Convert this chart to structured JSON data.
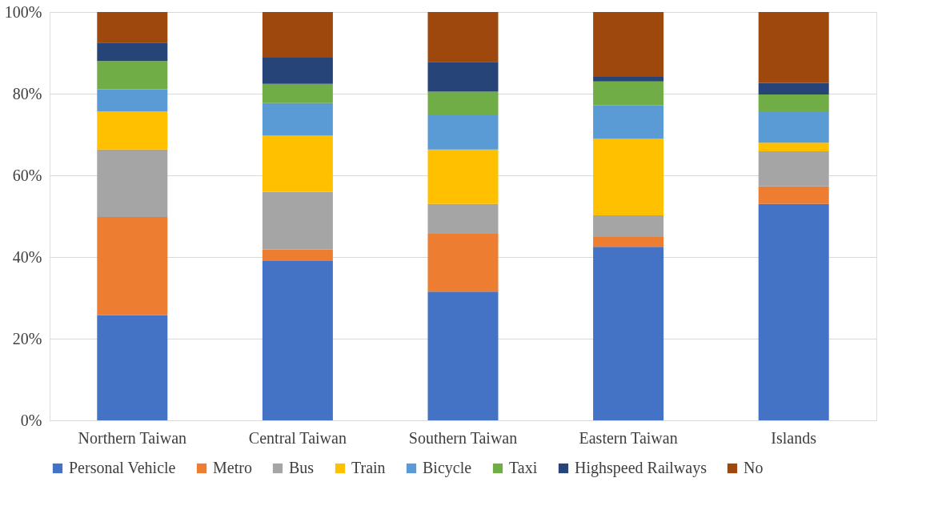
{
  "chart_data": {
    "type": "bar",
    "stacked": true,
    "categories": [
      "Northern Taiwan",
      "Central Taiwan",
      "Southern Taiwan",
      "Eastern Taiwan",
      "Islands"
    ],
    "series": [
      {
        "name": "Personal Vehicle",
        "color": "#4472c4",
        "values": [
          25.8,
          39.0,
          31.5,
          42.5,
          53.0
        ]
      },
      {
        "name": "Metro",
        "color": "#ed7d31",
        "values": [
          24.0,
          2.8,
          14.2,
          2.4,
          4.3
        ]
      },
      {
        "name": "Bus",
        "color": "#a5a5a5",
        "values": [
          16.5,
          14.2,
          7.3,
          5.3,
          8.6
        ]
      },
      {
        "name": "Train",
        "color": "#ffc000",
        "values": [
          9.4,
          13.7,
          13.3,
          18.7,
          2.1
        ]
      },
      {
        "name": "Bicycle",
        "color": "#5b9bd5",
        "values": [
          5.4,
          8.0,
          8.6,
          8.3,
          7.5
        ]
      },
      {
        "name": "Taxi",
        "color": "#70ad47",
        "values": [
          6.9,
          4.7,
          5.6,
          5.8,
          4.3
        ]
      },
      {
        "name": "Highspeed Railways",
        "color": "#264478",
        "values": [
          4.5,
          6.4,
          7.3,
          1.1,
          2.8
        ]
      },
      {
        "name": "No",
        "color": "#9e480e",
        "values": [
          7.5,
          11.2,
          12.2,
          15.9,
          17.4
        ]
      }
    ],
    "ylim": [
      0,
      100
    ],
    "yticks": [
      {
        "value": 0,
        "label": "0%"
      },
      {
        "value": 20,
        "label": "20%"
      },
      {
        "value": 40,
        "label": "40%"
      },
      {
        "value": 60,
        "label": "60%"
      },
      {
        "value": 80,
        "label": "80%"
      },
      {
        "value": 100,
        "label": "100%"
      }
    ],
    "grid": "y",
    "legend": "bottom"
  }
}
